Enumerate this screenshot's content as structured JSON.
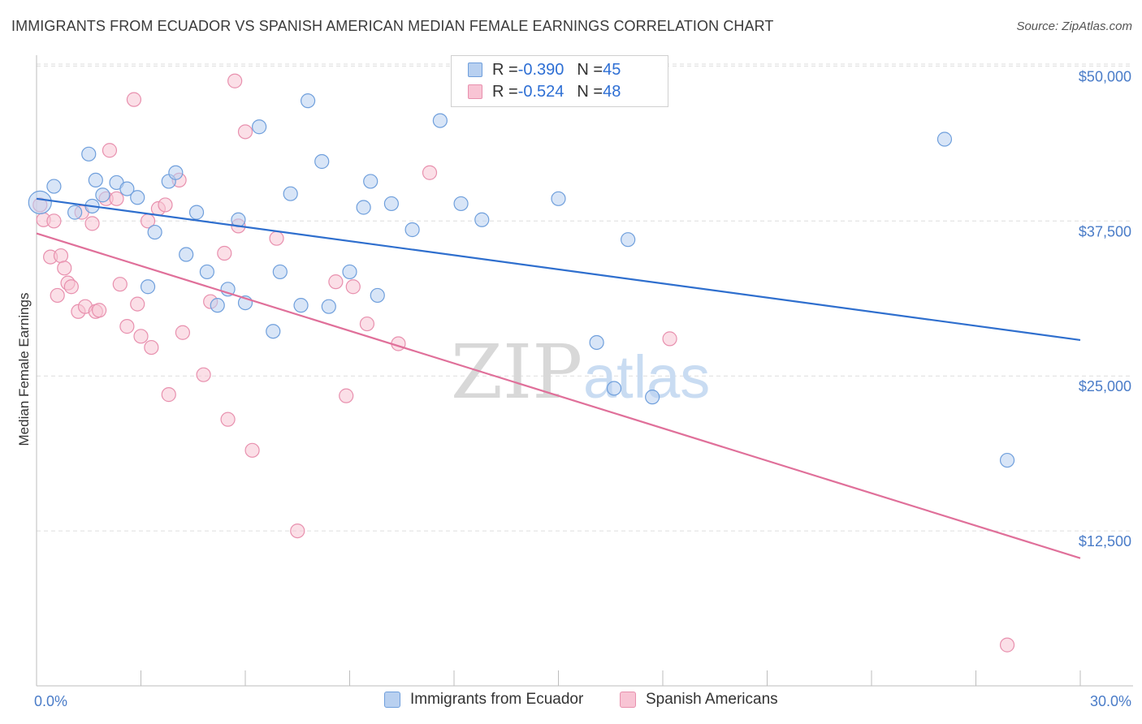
{
  "header": {
    "title": "IMMIGRANTS FROM ECUADOR VS SPANISH AMERICAN MEDIAN FEMALE EARNINGS CORRELATION CHART",
    "source": "Source: ZipAtlas.com"
  },
  "watermark": {
    "zip": "ZIP",
    "atlas": "atlas"
  },
  "legend": {
    "rows": [
      {
        "r_label": "R = ",
        "r_value": "-0.390",
        "n_label": "N = ",
        "n_value": "45"
      },
      {
        "r_label": "R = ",
        "r_value": "-0.524",
        "n_label": "N = ",
        "n_value": "48"
      }
    ]
  },
  "colors": {
    "blue_fill": "#b8d0f0",
    "blue_stroke": "#6f9fdc",
    "blue_line": "#2f6fce",
    "pink_fill": "#f8c4d4",
    "pink_stroke": "#e890ae",
    "pink_line": "#e0709a",
    "grid": "#dddddd",
    "tick_label": "#4a7cc8"
  },
  "chart_data": {
    "type": "scatter",
    "title": "IMMIGRANTS FROM ECUADOR VS SPANISH AMERICAN MEDIAN FEMALE EARNINGS CORRELATION CHART",
    "xlabel": "",
    "ylabel": "Median Female Earnings",
    "xlim": [
      0,
      30
    ],
    "ylim": [
      0,
      52000
    ],
    "x_tick_labels": [
      "0.0%",
      "30.0%"
    ],
    "y_ticks": [
      12500,
      25000,
      37500,
      50000
    ],
    "y_tick_labels": [
      "$12,500",
      "$25,000",
      "$37,500",
      "$50,000"
    ],
    "grid": true,
    "legend_position": "top-center",
    "series": [
      {
        "name": "Immigrants from Ecuador",
        "color": "#6f9fdc",
        "trend": {
          "x": [
            0,
            30
          ],
          "y": [
            39300,
            27900
          ]
        },
        "points": [
          {
            "x": 0.1,
            "y": 39000
          },
          {
            "x": 0.5,
            "y": 40300
          },
          {
            "x": 1.1,
            "y": 38200
          },
          {
            "x": 1.5,
            "y": 42900
          },
          {
            "x": 1.6,
            "y": 38700
          },
          {
            "x": 1.7,
            "y": 40800
          },
          {
            "x": 1.9,
            "y": 39600
          },
          {
            "x": 2.3,
            "y": 40600
          },
          {
            "x": 2.6,
            "y": 40100
          },
          {
            "x": 2.9,
            "y": 39400
          },
          {
            "x": 3.2,
            "y": 32200
          },
          {
            "x": 3.4,
            "y": 36600
          },
          {
            "x": 3.8,
            "y": 40700
          },
          {
            "x": 4.0,
            "y": 41400
          },
          {
            "x": 4.3,
            "y": 34800
          },
          {
            "x": 4.6,
            "y": 38200
          },
          {
            "x": 4.9,
            "y": 33400
          },
          {
            "x": 5.2,
            "y": 30700
          },
          {
            "x": 5.5,
            "y": 32000
          },
          {
            "x": 5.8,
            "y": 37600
          },
          {
            "x": 6.0,
            "y": 30900
          },
          {
            "x": 6.4,
            "y": 45100
          },
          {
            "x": 6.8,
            "y": 28600
          },
          {
            "x": 7.3,
            "y": 39700
          },
          {
            "x": 7.0,
            "y": 33400
          },
          {
            "x": 7.6,
            "y": 30700
          },
          {
            "x": 7.8,
            "y": 47200
          },
          {
            "x": 8.2,
            "y": 42300
          },
          {
            "x": 8.4,
            "y": 30600
          },
          {
            "x": 9.0,
            "y": 33400
          },
          {
            "x": 9.4,
            "y": 38600
          },
          {
            "x": 9.6,
            "y": 40700
          },
          {
            "x": 9.8,
            "y": 31500
          },
          {
            "x": 10.2,
            "y": 38900
          },
          {
            "x": 10.8,
            "y": 36800
          },
          {
            "x": 11.6,
            "y": 45600
          },
          {
            "x": 12.2,
            "y": 38900
          },
          {
            "x": 12.8,
            "y": 37600
          },
          {
            "x": 15.0,
            "y": 39300
          },
          {
            "x": 16.1,
            "y": 27700
          },
          {
            "x": 16.6,
            "y": 24000
          },
          {
            "x": 17.0,
            "y": 36000
          },
          {
            "x": 17.7,
            "y": 23300
          },
          {
            "x": 26.1,
            "y": 44100
          },
          {
            "x": 27.9,
            "y": 18200
          }
        ]
      },
      {
        "name": "Spanish Americans",
        "color": "#e890ae",
        "trend": {
          "x": [
            0,
            30
          ],
          "y": [
            36500,
            10300
          ]
        },
        "points": [
          {
            "x": 0.1,
            "y": 38800
          },
          {
            "x": 0.2,
            "y": 37600
          },
          {
            "x": 0.4,
            "y": 34600
          },
          {
            "x": 0.5,
            "y": 37500
          },
          {
            "x": 0.6,
            "y": 31500
          },
          {
            "x": 0.7,
            "y": 34700
          },
          {
            "x": 0.8,
            "y": 33700
          },
          {
            "x": 0.9,
            "y": 32500
          },
          {
            "x": 1.0,
            "y": 32200
          },
          {
            "x": 1.2,
            "y": 30200
          },
          {
            "x": 1.3,
            "y": 38200
          },
          {
            "x": 1.4,
            "y": 30600
          },
          {
            "x": 1.6,
            "y": 37300
          },
          {
            "x": 1.7,
            "y": 30200
          },
          {
            "x": 1.8,
            "y": 30300
          },
          {
            "x": 2.0,
            "y": 39300
          },
          {
            "x": 2.1,
            "y": 43200
          },
          {
            "x": 2.3,
            "y": 39300
          },
          {
            "x": 2.4,
            "y": 32400
          },
          {
            "x": 2.6,
            "y": 29000
          },
          {
            "x": 2.8,
            "y": 47300
          },
          {
            "x": 2.9,
            "y": 30800
          },
          {
            "x": 3.0,
            "y": 28200
          },
          {
            "x": 3.2,
            "y": 37500
          },
          {
            "x": 3.3,
            "y": 27300
          },
          {
            "x": 3.5,
            "y": 38500
          },
          {
            "x": 3.7,
            "y": 38800
          },
          {
            "x": 3.8,
            "y": 23500
          },
          {
            "x": 4.1,
            "y": 40800
          },
          {
            "x": 4.2,
            "y": 28500
          },
          {
            "x": 4.8,
            "y": 25100
          },
          {
            "x": 5.0,
            "y": 31000
          },
          {
            "x": 5.4,
            "y": 34900
          },
          {
            "x": 5.5,
            "y": 21500
          },
          {
            "x": 5.7,
            "y": 48800
          },
          {
            "x": 5.8,
            "y": 37100
          },
          {
            "x": 6.0,
            "y": 44700
          },
          {
            "x": 6.2,
            "y": 19000
          },
          {
            "x": 6.9,
            "y": 36100
          },
          {
            "x": 7.5,
            "y": 12500
          },
          {
            "x": 8.6,
            "y": 32600
          },
          {
            "x": 8.9,
            "y": 23400
          },
          {
            "x": 9.1,
            "y": 32200
          },
          {
            "x": 9.5,
            "y": 29200
          },
          {
            "x": 10.4,
            "y": 27600
          },
          {
            "x": 11.3,
            "y": 41400
          },
          {
            "x": 18.2,
            "y": 28000
          },
          {
            "x": 27.9,
            "y": 3300
          }
        ]
      }
    ]
  }
}
